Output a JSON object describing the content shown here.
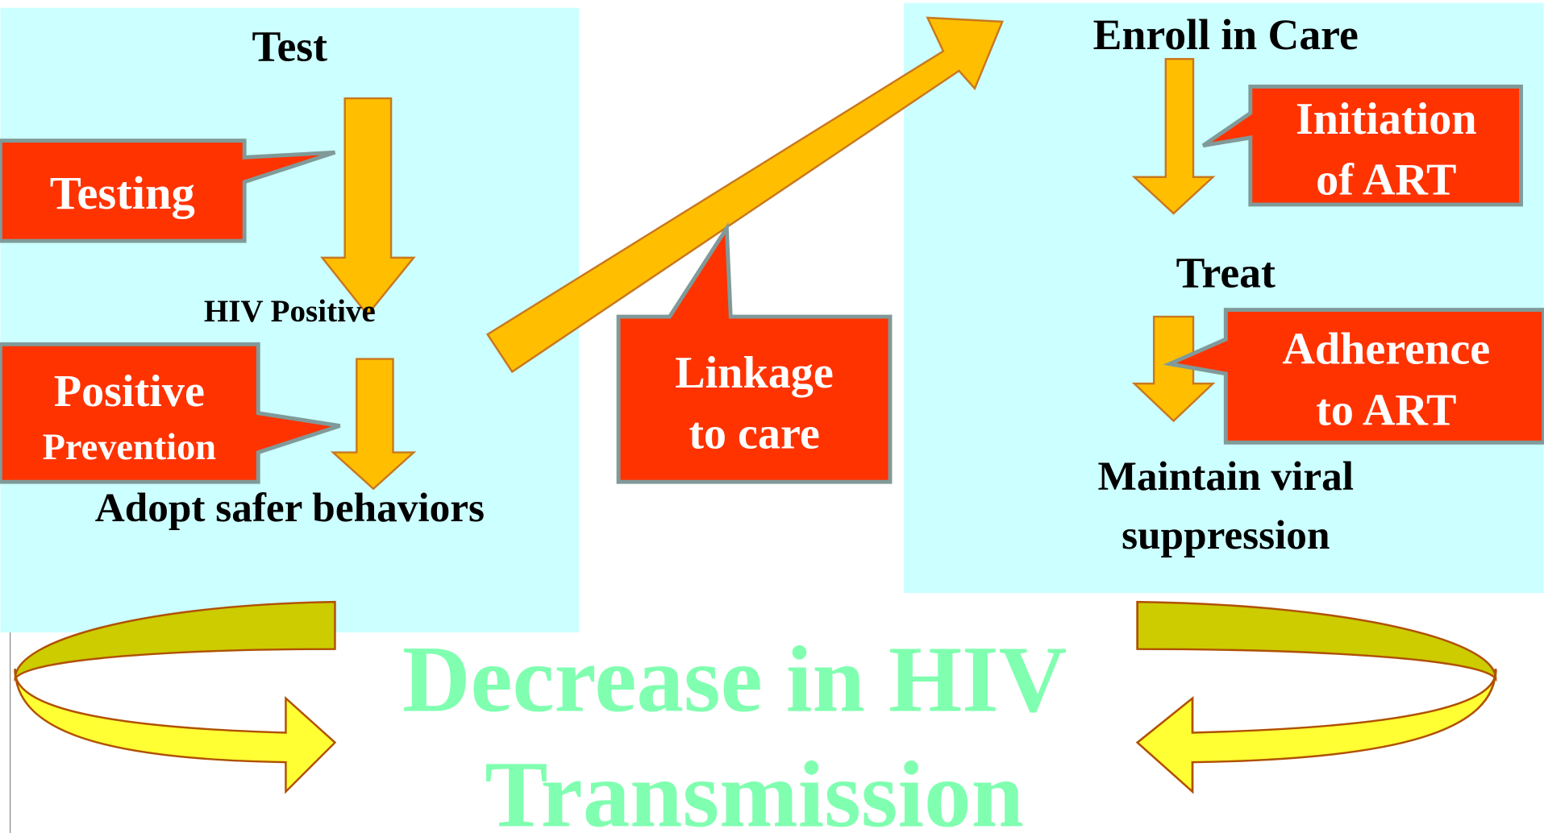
{
  "left_panel": {
    "title": "Test",
    "step": "HIV Positive",
    "outcome": "Adopt safer behaviors"
  },
  "right_panel": {
    "title": "Enroll in Care",
    "step": "Treat",
    "outcome": [
      "Maintain viral",
      "suppression"
    ]
  },
  "callouts": {
    "testing": "Testing",
    "positive_prevention": [
      "Positive",
      "Prevention"
    ],
    "linkage": [
      "Linkage",
      "to care"
    ],
    "initiation": [
      "Initiation",
      "of ART"
    ],
    "adherence": [
      "Adherence",
      "to ART"
    ]
  },
  "footer": [
    "Decrease in HIV",
    "Transmission"
  ]
}
